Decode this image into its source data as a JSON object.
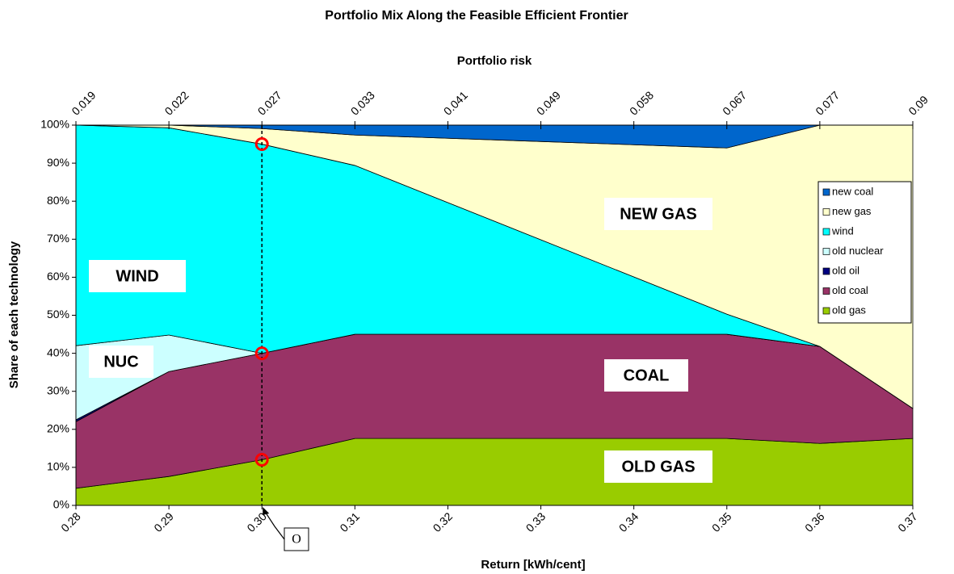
{
  "chart_data": {
    "type": "stacked_area",
    "title": "Portfolio Mix Along the Feasible Efficient Frontier",
    "x2_label": "Portfolio risk",
    "xlabel": "Return [kWh/cent]",
    "ylabel": "Share of each technology",
    "x": [
      0.28,
      0.29,
      0.3,
      0.31,
      0.35,
      0.36,
      0.37
    ],
    "series": [
      {
        "name": "old gas",
        "color": "#99cc00",
        "values": [
          4.5,
          7.6,
          12,
          17.6,
          17.6,
          16.3,
          17.6
        ]
      },
      {
        "name": "old coal",
        "color": "#993366",
        "values": [
          17.5,
          27.6,
          28,
          27.4,
          27.4,
          25.5,
          7.9
        ]
      },
      {
        "name": "old oil",
        "color": "#000080",
        "values": [
          0.5,
          0,
          0,
          0,
          0,
          0,
          0
        ]
      },
      {
        "name": "old nuclear",
        "color": "#ccffff",
        "values": [
          19.5,
          9.6,
          0,
          0,
          0,
          0,
          0
        ]
      },
      {
        "name": "wind",
        "color": "#00ffff",
        "values": [
          58,
          54.5,
          55,
          44.4,
          5.3,
          0,
          0
        ]
      },
      {
        "name": "new gas",
        "color": "#ffffcc",
        "values": [
          0,
          0.7,
          4.1,
          8,
          43.7,
          58.2,
          74.5
        ]
      },
      {
        "name": "new coal",
        "color": "#0066cc",
        "values": [
          0,
          0,
          0.9,
          2.6,
          6,
          0,
          0
        ]
      }
    ],
    "xlim": [
      0.28,
      0.37
    ],
    "xticks": [
      0.28,
      0.29,
      {
        "value": 0.3,
        "label": "0.30"
      },
      0.31,
      0.32,
      0.33,
      0.34,
      0.35,
      0.36,
      0.37
    ],
    "x2ticks": [
      0.019,
      0.022,
      0.027,
      0.033,
      0.041,
      0.049,
      0.058,
      0.067,
      0.077,
      0.09
    ],
    "ylim": [
      0,
      100
    ],
    "yticks": [
      {
        "value": 0,
        "label": "0%"
      },
      {
        "value": 10,
        "label": "10%"
      },
      {
        "value": 20,
        "label": "20%"
      },
      {
        "value": 30,
        "label": "30%"
      },
      {
        "value": 40,
        "label": "40%"
      },
      {
        "value": 50,
        "label": "50%"
      },
      {
        "value": 60,
        "label": "60%"
      },
      {
        "value": 70,
        "label": "70%"
      },
      {
        "value": 80,
        "label": "80%"
      },
      {
        "value": 90,
        "label": "90%"
      },
      {
        "value": 100,
        "label": "100%"
      }
    ],
    "legend": "right",
    "annotations": [
      "NEW GAS",
      "WIND",
      "NUC",
      "COAL",
      "OLD GAS"
    ],
    "highlight": {
      "x": 0.3,
      "label": "O"
    }
  }
}
